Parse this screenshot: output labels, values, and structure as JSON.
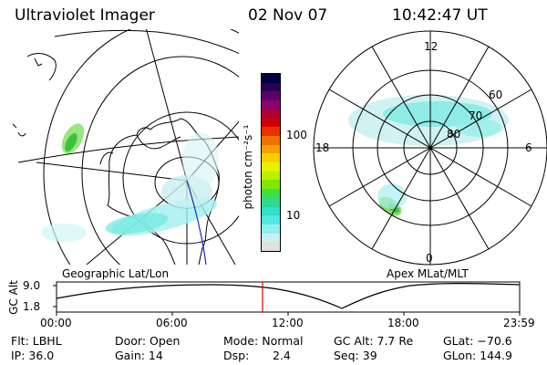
{
  "header": {
    "instrument": "Ultraviolet Imager",
    "date": "02 Nov 07",
    "time": "10:42:47 UT"
  },
  "geo_map": {
    "label": "Geographic Lat/Lon"
  },
  "polar_map": {
    "label": "Apex MLat/MLT",
    "mlt_labels": [
      "12",
      "6",
      "0",
      "18"
    ],
    "lat_labels": [
      "60",
      "70",
      "80"
    ]
  },
  "colorbar": {
    "unit_label": "photon cm⁻²s⁻¹",
    "ticks": [
      "100",
      "10"
    ],
    "colors": [
      "#000040",
      "#2a0050",
      "#5a0068",
      "#8c0070",
      "#b00030",
      "#d00000",
      "#e83000",
      "#f07000",
      "#f8a000",
      "#f8d000",
      "#e8f000",
      "#b8f000",
      "#80e800",
      "#40e040",
      "#30d890",
      "#30e0c8",
      "#50e8e0",
      "#90f0f0",
      "#c8f0f0",
      "#e0e0e0"
    ]
  },
  "timeline": {
    "axis_label": "GC Alt",
    "y_ticks": [
      "9.0",
      "1.8"
    ],
    "x_ticks": [
      "00:00",
      "06:00",
      "12:00",
      "18:00",
      "23:59"
    ]
  },
  "info": {
    "filter": "Flt: LBHL",
    "ip": "IP: 36.0",
    "door": "Door: Open",
    "gain": "Gain: 14",
    "mode": "Mode: Normal",
    "dsp_label": "Dsp:",
    "dsp_value": "2.4",
    "gc_alt": "GC Alt: 7.7 Re",
    "seq": "Seq: 39",
    "glat": "GLat: −70.6",
    "glon": "GLon: 144.9"
  }
}
